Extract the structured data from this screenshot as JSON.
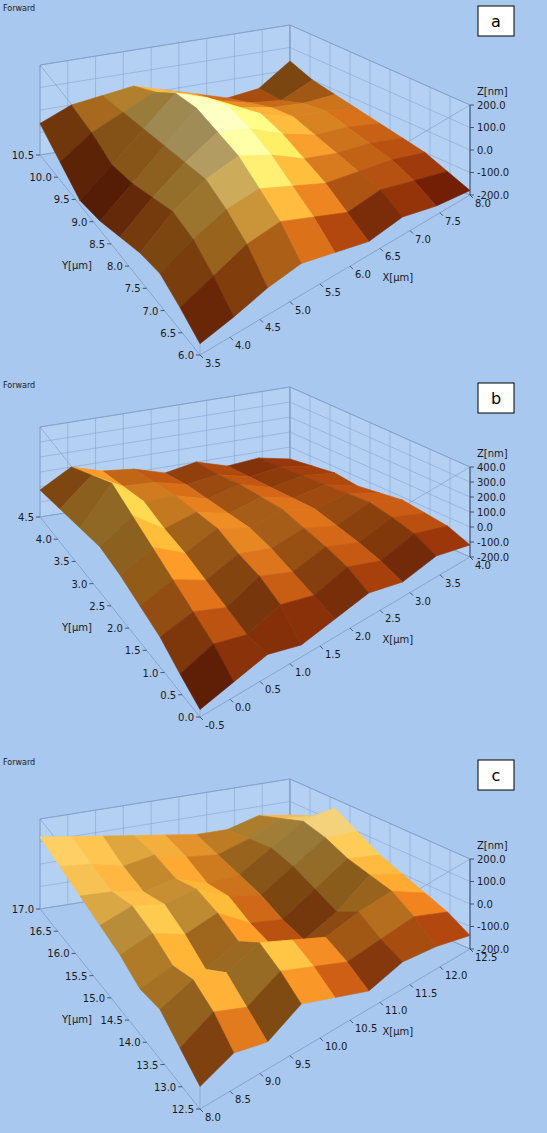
{
  "chart_data": [
    {
      "type": "surface",
      "label": "a",
      "header": "Forward",
      "x_label": "X[µm]",
      "y_label": "Y[µm]",
      "z_label": "Z[nm]",
      "xlim": [
        3.5,
        8.0
      ],
      "ylim": [
        6.0,
        10.5
      ],
      "zlim": [
        -200,
        200
      ],
      "xticks": [
        {
          "value": 3.5,
          "label": "3.5"
        },
        {
          "value": 4.0,
          "label": "4.0"
        },
        {
          "value": 4.5,
          "label": "4.5"
        },
        {
          "value": 5.0,
          "label": "5.0"
        },
        {
          "value": 5.5,
          "label": "5.5"
        },
        {
          "value": 6.0,
          "label": "6.0"
        },
        {
          "value": 6.5,
          "label": "6.5"
        },
        {
          "value": 7.0,
          "label": "7.0"
        },
        {
          "value": 7.5,
          "label": "7.5"
        },
        {
          "value": 8.0,
          "label": "8.0"
        }
      ],
      "yticks": [
        {
          "value": 6.0,
          "label": "6.0"
        },
        {
          "value": 6.5,
          "label": "6.5"
        },
        {
          "value": 7.0,
          "label": "7.0"
        },
        {
          "value": 7.5,
          "label": "7.5"
        },
        {
          "value": 8.0,
          "label": "8.0"
        },
        {
          "value": 8.5,
          "label": "8.5"
        },
        {
          "value": 9.0,
          "label": "9.0"
        },
        {
          "value": 9.5,
          "label": "9.5"
        },
        {
          "value": 10.0,
          "label": "10.0"
        },
        {
          "value": 10.5,
          "label": "10.5"
        }
      ],
      "zticks": [
        {
          "value": 200,
          "label": "200.0"
        },
        {
          "value": 100,
          "label": "100.0"
        },
        {
          "value": 0,
          "label": "0.0"
        },
        {
          "value": -100,
          "label": "-100.0"
        },
        {
          "value": -200,
          "label": "-200.0"
        }
      ],
      "z": [
        [
          -150,
          -120,
          -80,
          -60,
          -100,
          -140,
          -120,
          -160,
          -180
        ],
        [
          -100,
          -40,
          20,
          40,
          -20,
          -80,
          -60,
          -100,
          -140
        ],
        [
          -60,
          20,
          80,
          100,
          40,
          -20,
          -40,
          -60,
          -100
        ],
        [
          -80,
          40,
          120,
          160,
          100,
          20,
          -20,
          -40,
          -80
        ],
        [
          -120,
          0,
          100,
          180,
          140,
          60,
          0,
          -20,
          -60
        ],
        [
          -160,
          -40,
          80,
          200,
          160,
          80,
          20,
          0,
          -40
        ],
        [
          -180,
          -60,
          60,
          180,
          120,
          40,
          0,
          -20,
          -20
        ],
        [
          -120,
          -20,
          40,
          100,
          60,
          0,
          -40,
          -60,
          0
        ],
        [
          -60,
          0,
          20,
          40,
          0,
          -40,
          -80,
          -60,
          40
        ]
      ]
    },
    {
      "type": "surface",
      "label": "b",
      "header": "Forward",
      "x_label": "X[µm]",
      "y_label": "Y[µm]",
      "z_label": "Z[nm]",
      "xlim": [
        -0.5,
        4.0
      ],
      "ylim": [
        0.0,
        4.5
      ],
      "zlim": [
        -200,
        400
      ],
      "xticks": [
        {
          "value": -0.5,
          "label": "-0.5"
        },
        {
          "value": 0.0,
          "label": "0.0"
        },
        {
          "value": 0.5,
          "label": "0.5"
        },
        {
          "value": 1.0,
          "label": "1.0"
        },
        {
          "value": 1.5,
          "label": "1.5"
        },
        {
          "value": 2.0,
          "label": "2.0"
        },
        {
          "value": 2.5,
          "label": "2.5"
        },
        {
          "value": 3.0,
          "label": "3.0"
        },
        {
          "value": 3.5,
          "label": "3.5"
        },
        {
          "value": 4.0,
          "label": "4.0"
        }
      ],
      "yticks": [
        {
          "value": 0.0,
          "label": "0.0"
        },
        {
          "value": 0.5,
          "label": "0.5"
        },
        {
          "value": 1.0,
          "label": "1.0"
        },
        {
          "value": 1.5,
          "label": "1.5"
        },
        {
          "value": 2.0,
          "label": "2.0"
        },
        {
          "value": 2.5,
          "label": "2.5"
        },
        {
          "value": 3.0,
          "label": "3.0"
        },
        {
          "value": 3.5,
          "label": "3.5"
        },
        {
          "value": 4.0,
          "label": "4.0"
        },
        {
          "value": 4.5,
          "label": "4.5"
        }
      ],
      "zticks": [
        {
          "value": 400,
          "label": "400.0"
        },
        {
          "value": 300,
          "label": "300.0"
        },
        {
          "value": 200,
          "label": "200.0"
        },
        {
          "value": 100,
          "label": "100.0"
        },
        {
          "value": 0,
          "label": "0.0"
        },
        {
          "value": -100,
          "label": "-100.0"
        },
        {
          "value": -200,
          "label": "-200.0"
        }
      ],
      "z": [
        [
          -150,
          -100,
          -50,
          -120,
          -80,
          -40,
          -100,
          -60,
          -120
        ],
        [
          -80,
          0,
          -60,
          20,
          -40,
          30,
          -50,
          10,
          -60
        ],
        [
          0,
          60,
          -20,
          80,
          0,
          60,
          -20,
          40,
          -40
        ],
        [
          40,
          120,
          20,
          100,
          40,
          80,
          0,
          60,
          -20
        ],
        [
          80,
          180,
          60,
          140,
          60,
          100,
          20,
          40,
          -40
        ],
        [
          100,
          240,
          80,
          120,
          40,
          80,
          0,
          20,
          -60
        ],
        [
          60,
          300,
          120,
          100,
          20,
          60,
          -20,
          0,
          -40
        ],
        [
          20,
          200,
          80,
          60,
          0,
          20,
          -40,
          -20,
          -60
        ],
        [
          -20,
          100,
          40,
          20,
          -40,
          0,
          -60,
          -40,
          -80
        ]
      ]
    },
    {
      "type": "surface",
      "label": "c",
      "header": "Forward",
      "x_label": "X[µm]",
      "y_label": "Y[µm]",
      "z_label": "Z[nm]",
      "xlim": [
        8.0,
        12.5
      ],
      "ylim": [
        12.5,
        17.0
      ],
      "zlim": [
        -200,
        200
      ],
      "xticks": [
        {
          "value": 8.0,
          "label": "8.0"
        },
        {
          "value": 8.5,
          "label": "8.5"
        },
        {
          "value": 9.0,
          "label": "9.0"
        },
        {
          "value": 9.5,
          "label": "9.5"
        },
        {
          "value": 10.0,
          "label": "10.0"
        },
        {
          "value": 10.5,
          "label": "10.5"
        },
        {
          "value": 11.0,
          "label": "11.0"
        },
        {
          "value": 11.5,
          "label": "11.5"
        },
        {
          "value": 12.0,
          "label": "12.0"
        },
        {
          "value": 12.5,
          "label": "12.5"
        }
      ],
      "yticks": [
        {
          "value": 12.5,
          "label": "12.5"
        },
        {
          "value": 13.0,
          "label": "13.0"
        },
        {
          "value": 13.5,
          "label": "13.5"
        },
        {
          "value": 14.0,
          "label": "14.0"
        },
        {
          "value": 14.5,
          "label": "14.5"
        },
        {
          "value": 15.0,
          "label": "15.0"
        },
        {
          "value": 15.5,
          "label": "15.5"
        },
        {
          "value": 16.0,
          "label": "16.0"
        },
        {
          "value": 16.5,
          "label": "16.5"
        },
        {
          "value": 17.0,
          "label": "17.0"
        }
      ],
      "zticks": [
        {
          "value": 200,
          "label": "200.0"
        },
        {
          "value": 100,
          "label": "100.0"
        },
        {
          "value": 0,
          "label": "0.0"
        },
        {
          "value": -100,
          "label": "-100.0"
        },
        {
          "value": -200,
          "label": "-200.0"
        }
      ],
      "z": [
        [
          -100,
          -40,
          -80,
          0,
          -60,
          -120,
          -80,
          -100,
          -140
        ],
        [
          -40,
          40,
          -20,
          60,
          0,
          -60,
          -40,
          -20,
          -80
        ],
        [
          20,
          80,
          40,
          100,
          40,
          -20,
          20,
          40,
          -40
        ],
        [
          0,
          40,
          -40,
          20,
          -60,
          -100,
          -40,
          60,
          0
        ],
        [
          40,
          80,
          20,
          60,
          -40,
          -80,
          0,
          80,
          40
        ],
        [
          60,
          100,
          60,
          80,
          0,
          -40,
          40,
          120,
          100
        ],
        [
          80,
          60,
          20,
          40,
          -20,
          -20,
          60,
          140,
          160
        ],
        [
          100,
          80,
          40,
          60,
          20,
          0,
          40,
          100,
          80
        ],
        [
          120,
          100,
          80,
          60,
          40,
          20,
          20,
          60,
          40
        ]
      ]
    }
  ]
}
